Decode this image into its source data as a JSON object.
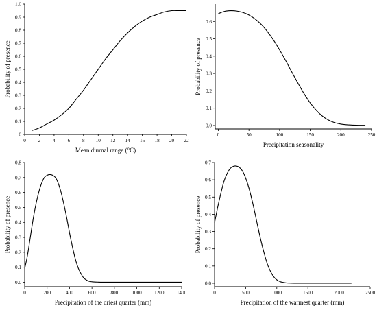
{
  "chart_data": [
    {
      "type": "line",
      "title": "",
      "xlabel": "Mean diurnal range (°C)",
      "ylabel": "Probability of presence",
      "xlim": [
        0,
        22
      ],
      "ylim": [
        0,
        1.0
      ],
      "xticks": [
        0,
        2,
        4,
        6,
        8,
        10,
        12,
        14,
        16,
        18,
        20,
        22
      ],
      "yticks": [
        0,
        0.1,
        0.2,
        0.3,
        0.4,
        0.5,
        0.6,
        0.7,
        0.8,
        0.9,
        1.0
      ],
      "ytick_labels": [
        "0",
        "0.1",
        "0.2",
        "0.3",
        "0.4",
        "0.5",
        "0.6",
        "0.7",
        "0.8",
        "0.9",
        "1.0"
      ],
      "grid": false,
      "series": [
        {
          "x": [
            1,
            2,
            3,
            4,
            5,
            6,
            7,
            8,
            9,
            10,
            11,
            12,
            13,
            14,
            15,
            16,
            17,
            18,
            19,
            20,
            21,
            22
          ],
          "values": [
            0.03,
            0.05,
            0.08,
            0.11,
            0.15,
            0.2,
            0.27,
            0.34,
            0.42,
            0.5,
            0.58,
            0.65,
            0.72,
            0.78,
            0.83,
            0.87,
            0.9,
            0.92,
            0.94,
            0.95,
            0.95,
            0.95
          ]
        }
      ]
    },
    {
      "type": "line",
      "title": "",
      "xlabel": "Precipitation seasonality",
      "ylabel": "Probability of presence",
      "xlim": [
        -5,
        250
      ],
      "ylim": [
        -0.02,
        0.7
      ],
      "xticks": [
        0,
        50,
        100,
        150,
        200,
        250
      ],
      "yticks": [
        0,
        0.1,
        0.2,
        0.3,
        0.4,
        0.5,
        0.6
      ],
      "ytick_labels": [
        "0.0",
        "0.1",
        "0.2",
        "0.3",
        "0.4",
        "0.5",
        "0.6"
      ],
      "grid": false,
      "series": [
        {
          "x": [
            0,
            10,
            20,
            30,
            40,
            50,
            60,
            70,
            80,
            90,
            100,
            110,
            120,
            130,
            140,
            150,
            160,
            170,
            180,
            190,
            200,
            210,
            220,
            230,
            240
          ],
          "values": [
            0.645,
            0.658,
            0.662,
            0.66,
            0.652,
            0.637,
            0.614,
            0.583,
            0.542,
            0.493,
            0.436,
            0.374,
            0.308,
            0.244,
            0.183,
            0.13,
            0.087,
            0.054,
            0.031,
            0.016,
            0.008,
            0.004,
            0.002,
            0.001,
            0.001
          ]
        }
      ]
    },
    {
      "type": "line",
      "title": "",
      "xlabel": "Precipitation of the driest quarter (mm)",
      "ylabel": "Probability of presence",
      "xlim": [
        0,
        1400
      ],
      "ylim": [
        -0.03,
        0.8
      ],
      "xticks": [
        0,
        200,
        400,
        600,
        800,
        1000,
        1200,
        1400
      ],
      "yticks": [
        0,
        0.1,
        0.2,
        0.3,
        0.4,
        0.5,
        0.6,
        0.7,
        0.8
      ],
      "ytick_labels": [
        "0.0",
        "0.1",
        "0.2",
        "0.3",
        "0.4",
        "0.5",
        "0.6",
        "0.7",
        "0.8"
      ],
      "grid": false,
      "series": [
        {
          "x": [
            0,
            25,
            50,
            75,
            100,
            125,
            150,
            175,
            200,
            225,
            250,
            275,
            300,
            325,
            350,
            375,
            400,
            425,
            450,
            475,
            500,
            525,
            550,
            575,
            600,
            650,
            700,
            800,
            900,
            1000,
            1100,
            1200,
            1300,
            1400
          ],
          "values": [
            0.09,
            0.18,
            0.3,
            0.42,
            0.52,
            0.6,
            0.66,
            0.7,
            0.715,
            0.72,
            0.715,
            0.7,
            0.66,
            0.6,
            0.52,
            0.43,
            0.33,
            0.24,
            0.16,
            0.1,
            0.06,
            0.03,
            0.015,
            0.006,
            0.003,
            0.001,
            0,
            0,
            0,
            0,
            0,
            0,
            0,
            0
          ]
        }
      ]
    },
    {
      "type": "line",
      "title": "",
      "xlabel": "Precipitation of the warmest quarter (mm)",
      "ylabel": "Probability of presence",
      "xlim": [
        0,
        2500
      ],
      "ylim": [
        -0.02,
        0.7
      ],
      "xticks": [
        0,
        500,
        1000,
        1500,
        2000,
        2500
      ],
      "yticks": [
        0,
        0.1,
        0.2,
        0.3,
        0.4,
        0.5,
        0.6,
        0.7
      ],
      "ytick_labels": [
        "0.0",
        "0.1",
        "0.2",
        "0.3",
        "0.4",
        "0.5",
        "0.6",
        "0.7"
      ],
      "grid": false,
      "series": [
        {
          "x": [
            0,
            50,
            100,
            150,
            200,
            250,
            300,
            350,
            400,
            450,
            500,
            550,
            600,
            650,
            700,
            750,
            800,
            850,
            900,
            950,
            1000,
            1050,
            1100,
            1150,
            1200,
            1300,
            1400,
            1600,
            1800,
            2000,
            2200
          ],
          "values": [
            0.35,
            0.44,
            0.52,
            0.59,
            0.635,
            0.665,
            0.678,
            0.68,
            0.672,
            0.65,
            0.61,
            0.555,
            0.485,
            0.405,
            0.32,
            0.24,
            0.17,
            0.11,
            0.068,
            0.038,
            0.02,
            0.01,
            0.005,
            0.002,
            0.001,
            0,
            0,
            0,
            0,
            0,
            0
          ]
        }
      ]
    }
  ]
}
